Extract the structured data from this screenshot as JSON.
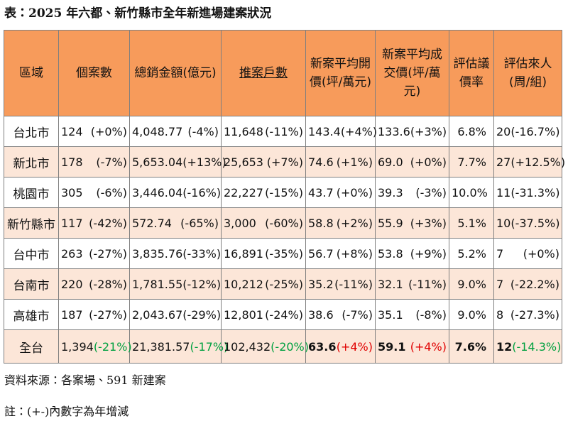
{
  "header": {
    "title": "表：2025 年六都、新竹縣市全年新進場建案狀況"
  },
  "table": {
    "columns": [
      "區域",
      "個案數",
      "總銷金額(億元)",
      "推案戶數",
      "新案平均開價(坪/萬元)",
      "新案平均成交價(坪/萬元)",
      "評估議價率",
      "評估來人(周/組)"
    ],
    "rows": [
      [
        "台北市",
        {
          "value": "124",
          "change": "(+0%)"
        },
        {
          "value": "4,048.77",
          "change": "(-4%)"
        },
        {
          "value": "11,648",
          "change": "(-11%)"
        },
        {
          "value": "143.4",
          "change": "(+4%)"
        },
        {
          "value": "133.6",
          "change": "(+3%)"
        },
        "6.8%",
        {
          "value": "20",
          "change": "(-16.7%)"
        }
      ],
      [
        "新北市",
        {
          "value": "178",
          "change": "(-7%)"
        },
        {
          "value": "5,653.04",
          "change": "(+13%)"
        },
        {
          "value": "25,653",
          "change": "(+7%)"
        },
        {
          "value": "74.6",
          "change": "(+1%)"
        },
        {
          "value": "69.0",
          "change": "(+0%)"
        },
        "7.7%",
        {
          "value": "27",
          "change": "(+12.5%)"
        }
      ],
      [
        "桃園市",
        {
          "value": "305",
          "change": "(-6%)"
        },
        {
          "value": "3,446.04",
          "change": "(-16%)"
        },
        {
          "value": "22,227",
          "change": "(-15%)"
        },
        {
          "value": "43.7",
          "change": "(+0%)"
        },
        {
          "value": "39.3",
          "change": "(-3%)"
        },
        "10.0%",
        {
          "value": "11",
          "change": "(-31.3%)"
        }
      ],
      [
        "新竹縣市",
        {
          "value": "117",
          "change": "(-42%)"
        },
        {
          "value": "572.74",
          "change": "(-65%)"
        },
        {
          "value": "3,000",
          "change": "(-60%)"
        },
        {
          "value": "58.8",
          "change": "(+2%)"
        },
        {
          "value": "55.9",
          "change": "(+3%)"
        },
        "5.1%",
        {
          "value": "10",
          "change": "(-37.5%)"
        }
      ],
      [
        "台中市",
        {
          "value": "263",
          "change": "(-27%)"
        },
        {
          "value": "3,835.76",
          "change": "(-33%)"
        },
        {
          "value": "16,891",
          "change": "(-35%)"
        },
        {
          "value": "56.7",
          "change": "(+8%)"
        },
        {
          "value": "53.8",
          "change": "(+9%)"
        },
        "5.2%",
        {
          "value": "7",
          "change": "(+0%)"
        }
      ],
      [
        "台南市",
        {
          "value": "220",
          "change": "(-28%)"
        },
        {
          "value": "1,781.55",
          "change": "(-12%)"
        },
        {
          "value": "10,212",
          "change": "(-25%)"
        },
        {
          "value": "35.2",
          "change": "(-11%)"
        },
        {
          "value": "32.1",
          "change": "(-11%)"
        },
        "9.0%",
        {
          "value": "7",
          "change": "(-22.2%)"
        }
      ],
      [
        "高雄市",
        {
          "value": "187",
          "change": "(-27%)"
        },
        {
          "value": "2,043.67",
          "change": "(-29%)"
        },
        {
          "value": "12,801",
          "change": "(-24%)"
        },
        {
          "value": "38.6",
          "change": "(-7%)"
        },
        {
          "value": "35.1",
          "change": "(-8%)"
        },
        "9.0%",
        {
          "value": "8",
          "change": "(-27.3%)"
        }
      ],
      [
        "全台",
        {
          "value": "1,394",
          "change": "(-21%)"
        },
        {
          "value": "21,381.57",
          "change": "(-17%)"
        },
        {
          "value": "102,432",
          "change": "(-20%)"
        },
        {
          "value": "63.6",
          "change": "(+4%)"
        },
        {
          "value": "59.1",
          "change": "(+4%)"
        },
        "7.6%",
        {
          "value": "12",
          "change": "(-14.3%)"
        }
      ]
    ]
  },
  "notes": [
    "資料來源：各案場、591 新建案",
    "註：(+-)內數字為年增減"
  ]
}
